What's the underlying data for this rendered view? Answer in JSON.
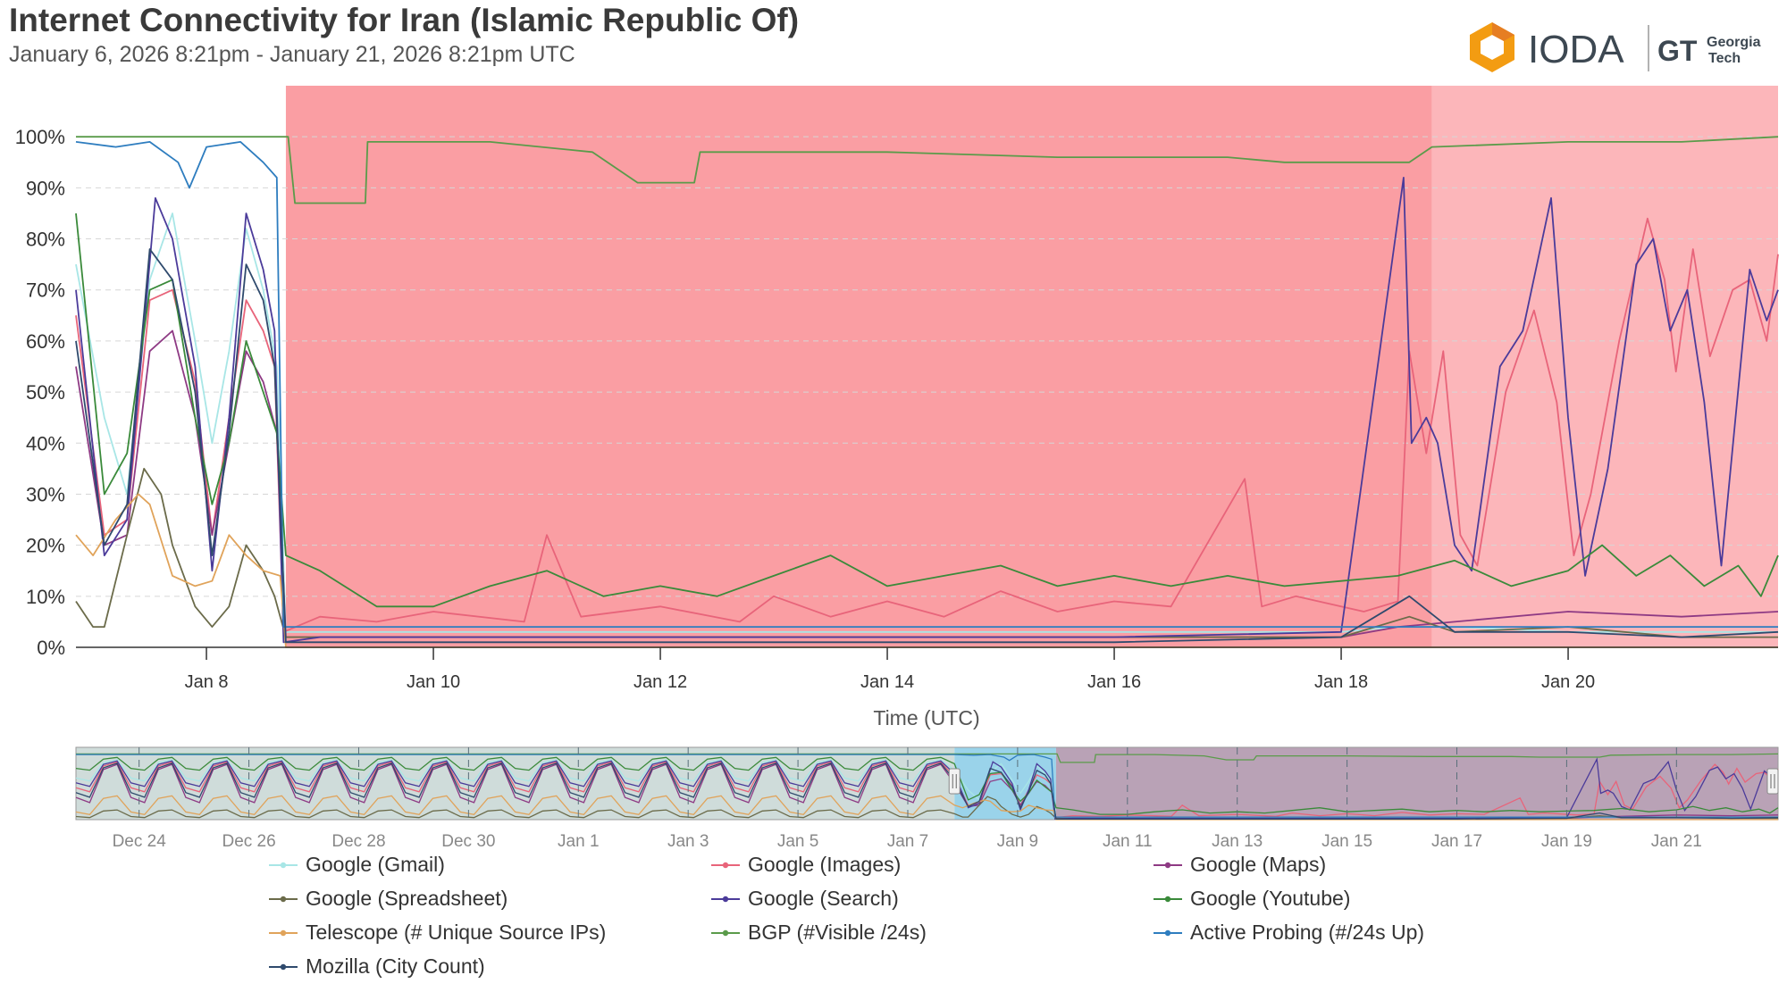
{
  "page": {
    "title": "Internet Connectivity for Iran (Islamic Republic Of)",
    "subtitle": "January 6, 2026 8:21pm - January 21, 2026 8:21pm UTC",
    "brand": "IODA",
    "partner_line1": "Georgia",
    "partner_line2": "Tech",
    "brand_color": "#f39c12"
  },
  "chart_data": {
    "type": "line",
    "xlabel": "Time (UTC)",
    "ylabel": "",
    "x_ticks": [
      "Jan 8",
      "Jan 10",
      "Jan 12",
      "Jan 14",
      "Jan 16",
      "Jan 18",
      "Jan 20"
    ],
    "y_ticks": [
      "0%",
      "10%",
      "20%",
      "30%",
      "40%",
      "50%",
      "60%",
      "70%",
      "80%",
      "90%",
      "100%"
    ],
    "ylim": [
      0,
      110
    ],
    "xlim_days": [
      6.85,
      21.85
    ],
    "x_unit": "day of January 2026 (UTC)",
    "grid": "horizontal dashed",
    "outage_regions": [
      {
        "start": 8.7,
        "end": 18.8,
        "color": "#fa9ea3"
      },
      {
        "start": 18.8,
        "end": 21.85,
        "color": "#fcb6ba"
      }
    ],
    "series": [
      {
        "name": "Google (Gmail)",
        "color": "#a8e6e6",
        "points": [
          [
            6.85,
            75
          ],
          [
            7.1,
            45
          ],
          [
            7.3,
            30
          ],
          [
            7.5,
            72
          ],
          [
            7.7,
            85
          ],
          [
            7.9,
            60
          ],
          [
            8.05,
            40
          ],
          [
            8.2,
            58
          ],
          [
            8.35,
            82
          ],
          [
            8.5,
            70
          ],
          [
            8.62,
            55
          ],
          [
            8.7,
            3
          ],
          [
            10,
            3
          ],
          [
            12,
            3
          ],
          [
            14,
            3
          ],
          [
            16,
            3
          ],
          [
            18,
            3
          ],
          [
            18.5,
            4
          ],
          [
            19,
            4
          ],
          [
            20,
            3
          ],
          [
            21,
            3
          ],
          [
            21.85,
            3
          ]
        ]
      },
      {
        "name": "Google (Images)",
        "color": "#e8647a",
        "points": [
          [
            6.85,
            65
          ],
          [
            7.1,
            22
          ],
          [
            7.3,
            25
          ],
          [
            7.5,
            68
          ],
          [
            7.7,
            70
          ],
          [
            7.9,
            52
          ],
          [
            8.05,
            22
          ],
          [
            8.2,
            45
          ],
          [
            8.35,
            68
          ],
          [
            8.5,
            62
          ],
          [
            8.6,
            55
          ],
          [
            8.68,
            3
          ],
          [
            9,
            6
          ],
          [
            9.5,
            5
          ],
          [
            10,
            7
          ],
          [
            10.8,
            5
          ],
          [
            11,
            22
          ],
          [
            11.3,
            6
          ],
          [
            12,
            8
          ],
          [
            12.7,
            5
          ],
          [
            13,
            10
          ],
          [
            13.5,
            6
          ],
          [
            14,
            9
          ],
          [
            14.5,
            6
          ],
          [
            15,
            11
          ],
          [
            15.5,
            7
          ],
          [
            16,
            9
          ],
          [
            16.5,
            8
          ],
          [
            17.15,
            33
          ],
          [
            17.3,
            8
          ],
          [
            17.6,
            10
          ],
          [
            18.2,
            7
          ],
          [
            18.5,
            9
          ],
          [
            18.6,
            58
          ],
          [
            18.75,
            38
          ],
          [
            18.9,
            58
          ],
          [
            19.05,
            22
          ],
          [
            19.2,
            16
          ],
          [
            19.45,
            50
          ],
          [
            19.7,
            66
          ],
          [
            19.9,
            48
          ],
          [
            20.05,
            18
          ],
          [
            20.2,
            30
          ],
          [
            20.45,
            60
          ],
          [
            20.7,
            84
          ],
          [
            20.85,
            72
          ],
          [
            20.95,
            54
          ],
          [
            21.1,
            78
          ],
          [
            21.25,
            57
          ],
          [
            21.45,
            70
          ],
          [
            21.6,
            72
          ],
          [
            21.75,
            60
          ],
          [
            21.85,
            77
          ]
        ]
      },
      {
        "name": "Google (Maps)",
        "color": "#8e3a84",
        "points": [
          [
            6.85,
            55
          ],
          [
            7.1,
            20
          ],
          [
            7.3,
            22
          ],
          [
            7.5,
            58
          ],
          [
            7.7,
            62
          ],
          [
            7.9,
            45
          ],
          [
            8.05,
            22
          ],
          [
            8.2,
            40
          ],
          [
            8.35,
            58
          ],
          [
            8.5,
            52
          ],
          [
            8.62,
            42
          ],
          [
            8.7,
            2
          ],
          [
            10,
            2
          ],
          [
            12,
            2
          ],
          [
            14,
            2
          ],
          [
            16,
            2
          ],
          [
            18,
            2
          ],
          [
            18.5,
            4
          ],
          [
            19,
            5
          ],
          [
            20,
            7
          ],
          [
            21,
            6
          ],
          [
            21.85,
            7
          ]
        ]
      },
      {
        "name": "Google (Spreadsheet)",
        "color": "#6b6b4a",
        "points": [
          [
            6.85,
            9
          ],
          [
            7.0,
            4
          ],
          [
            7.1,
            4
          ],
          [
            7.3,
            22
          ],
          [
            7.45,
            35
          ],
          [
            7.6,
            30
          ],
          [
            7.7,
            20
          ],
          [
            7.9,
            8
          ],
          [
            8.05,
            4
          ],
          [
            8.2,
            8
          ],
          [
            8.35,
            20
          ],
          [
            8.5,
            15
          ],
          [
            8.6,
            10
          ],
          [
            8.7,
            2
          ],
          [
            10,
            2
          ],
          [
            12,
            2
          ],
          [
            14,
            2
          ],
          [
            16,
            2
          ],
          [
            18,
            2
          ],
          [
            18.6,
            6
          ],
          [
            19,
            3
          ],
          [
            20,
            4
          ],
          [
            21,
            2
          ],
          [
            21.85,
            2
          ]
        ]
      },
      {
        "name": "Google (Search)",
        "color": "#4b3b9a",
        "points": [
          [
            6.85,
            70
          ],
          [
            7.1,
            18
          ],
          [
            7.3,
            25
          ],
          [
            7.55,
            88
          ],
          [
            7.7,
            80
          ],
          [
            7.9,
            55
          ],
          [
            8.05,
            15
          ],
          [
            8.2,
            45
          ],
          [
            8.35,
            85
          ],
          [
            8.5,
            74
          ],
          [
            8.6,
            62
          ],
          [
            8.68,
            1
          ],
          [
            9,
            2
          ],
          [
            10,
            2
          ],
          [
            12,
            2
          ],
          [
            14,
            2
          ],
          [
            16,
            2
          ],
          [
            18,
            3
          ],
          [
            18.55,
            92
          ],
          [
            18.62,
            40
          ],
          [
            18.75,
            45
          ],
          [
            18.85,
            40
          ],
          [
            19.0,
            20
          ],
          [
            19.15,
            15
          ],
          [
            19.4,
            55
          ],
          [
            19.6,
            62
          ],
          [
            19.85,
            88
          ],
          [
            20.0,
            45
          ],
          [
            20.15,
            14
          ],
          [
            20.35,
            35
          ],
          [
            20.6,
            75
          ],
          [
            20.75,
            80
          ],
          [
            20.9,
            62
          ],
          [
            21.05,
            70
          ],
          [
            21.2,
            48
          ],
          [
            21.35,
            16
          ],
          [
            21.6,
            74
          ],
          [
            21.75,
            64
          ],
          [
            21.85,
            70
          ]
        ]
      },
      {
        "name": "Google (Youtube)",
        "color": "#3a8a3a",
        "points": [
          [
            6.85,
            85
          ],
          [
            7.1,
            30
          ],
          [
            7.3,
            38
          ],
          [
            7.5,
            70
          ],
          [
            7.7,
            72
          ],
          [
            7.9,
            45
          ],
          [
            8.05,
            28
          ],
          [
            8.2,
            40
          ],
          [
            8.35,
            60
          ],
          [
            8.5,
            50
          ],
          [
            8.62,
            42
          ],
          [
            8.7,
            18
          ],
          [
            9,
            15
          ],
          [
            9.5,
            8
          ],
          [
            10,
            8
          ],
          [
            10.5,
            12
          ],
          [
            11,
            15
          ],
          [
            11.5,
            10
          ],
          [
            12,
            12
          ],
          [
            12.5,
            10
          ],
          [
            13,
            14
          ],
          [
            13.5,
            18
          ],
          [
            14,
            12
          ],
          [
            14.5,
            14
          ],
          [
            15,
            16
          ],
          [
            15.5,
            12
          ],
          [
            16,
            14
          ],
          [
            16.5,
            12
          ],
          [
            17,
            14
          ],
          [
            17.5,
            12
          ],
          [
            18,
            13
          ],
          [
            18.5,
            14
          ],
          [
            19,
            17
          ],
          [
            19.5,
            12
          ],
          [
            20,
            15
          ],
          [
            20.3,
            20
          ],
          [
            20.6,
            14
          ],
          [
            20.9,
            18
          ],
          [
            21.2,
            12
          ],
          [
            21.5,
            16
          ],
          [
            21.7,
            10
          ],
          [
            21.85,
            18
          ]
        ]
      },
      {
        "name": "Telescope (# Unique Source IPs)",
        "color": "#e0a35a",
        "points": [
          [
            6.85,
            22
          ],
          [
            7.0,
            18
          ],
          [
            7.2,
            25
          ],
          [
            7.4,
            30
          ],
          [
            7.5,
            28
          ],
          [
            7.7,
            14
          ],
          [
            7.9,
            12
          ],
          [
            8.05,
            13
          ],
          [
            8.2,
            22
          ],
          [
            8.35,
            18
          ],
          [
            8.5,
            15
          ],
          [
            8.65,
            14
          ],
          [
            8.7,
            0
          ],
          [
            10,
            0
          ],
          [
            12,
            0
          ],
          [
            14,
            0
          ],
          [
            16,
            0
          ],
          [
            18,
            0
          ],
          [
            19,
            0
          ],
          [
            20,
            0
          ],
          [
            21,
            0
          ],
          [
            21.85,
            0
          ]
        ]
      },
      {
        "name": "BGP (#Visible /24s)",
        "color": "#5a9b4a",
        "points": [
          [
            6.85,
            100
          ],
          [
            8.5,
            100
          ],
          [
            8.72,
            100
          ],
          [
            8.78,
            87
          ],
          [
            9.4,
            87
          ],
          [
            9.42,
            99
          ],
          [
            10.5,
            99
          ],
          [
            11.4,
            97
          ],
          [
            11.8,
            91
          ],
          [
            12.3,
            91
          ],
          [
            12.35,
            97
          ],
          [
            14,
            97
          ],
          [
            15.5,
            96
          ],
          [
            16,
            96
          ],
          [
            17,
            96
          ],
          [
            17.5,
            95
          ],
          [
            18,
            95
          ],
          [
            18.6,
            95
          ],
          [
            18.8,
            98
          ],
          [
            20,
            99
          ],
          [
            21,
            99
          ],
          [
            21.85,
            100
          ]
        ]
      },
      {
        "name": "Active Probing (#/24s Up)",
        "color": "#2e7dbf",
        "points": [
          [
            6.85,
            99
          ],
          [
            7.2,
            98
          ],
          [
            7.5,
            99
          ],
          [
            7.75,
            95
          ],
          [
            7.85,
            90
          ],
          [
            8.0,
            98
          ],
          [
            8.3,
            99
          ],
          [
            8.5,
            95
          ],
          [
            8.62,
            92
          ],
          [
            8.68,
            4
          ],
          [
            10,
            4
          ],
          [
            12,
            4
          ],
          [
            14,
            4
          ],
          [
            16,
            4
          ],
          [
            18,
            4
          ],
          [
            20,
            4
          ],
          [
            21.85,
            4
          ]
        ]
      },
      {
        "name": "Mozilla (City Count)",
        "color": "#2f4a6d",
        "points": [
          [
            6.85,
            60
          ],
          [
            7.1,
            20
          ],
          [
            7.3,
            28
          ],
          [
            7.5,
            78
          ],
          [
            7.7,
            72
          ],
          [
            7.9,
            50
          ],
          [
            8.05,
            18
          ],
          [
            8.2,
            42
          ],
          [
            8.35,
            75
          ],
          [
            8.5,
            68
          ],
          [
            8.6,
            55
          ],
          [
            8.7,
            1
          ],
          [
            10,
            1
          ],
          [
            12,
            1
          ],
          [
            14,
            1
          ],
          [
            16,
            1
          ],
          [
            18,
            2
          ],
          [
            18.6,
            10
          ],
          [
            19,
            3
          ],
          [
            20,
            3
          ],
          [
            21,
            2
          ],
          [
            21.85,
            3
          ]
        ]
      }
    ],
    "navigator": {
      "x_ticks": [
        "Dec 24",
        "Dec 26",
        "Dec 28",
        "Dec 30",
        "Jan 1",
        "Jan 3",
        "Jan 5",
        "Jan 7",
        "Jan 9",
        "Jan 11",
        "Jan 13",
        "Jan 15",
        "Jan 17",
        "Jan 19",
        "Jan 21"
      ],
      "selected_range": [
        "Jan 6",
        "Jan 21"
      ]
    }
  }
}
